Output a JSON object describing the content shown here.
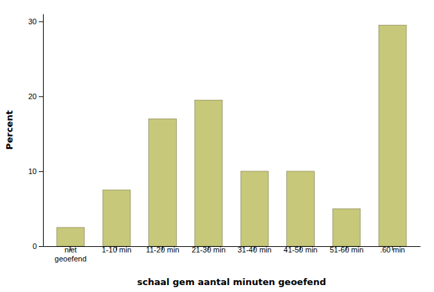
{
  "chart_data": {
    "type": "bar",
    "categories": [
      "niet\ngeoefend",
      "1-10 min",
      "11-20 min",
      "21-30 min",
      "31-40 min",
      "41-50 min",
      "51-60 min",
      ".60 min"
    ],
    "values": [
      2.5,
      7.5,
      17.0,
      19.5,
      10.0,
      10.0,
      5.0,
      29.5
    ],
    "color": "#c8c87a",
    "xlabel": "schaal gem aantal minuten geoefend",
    "ylabel": "Percent",
    "ylim": [
      0,
      31
    ],
    "yticks": [
      0,
      10,
      20,
      30
    ],
    "grid": false
  }
}
